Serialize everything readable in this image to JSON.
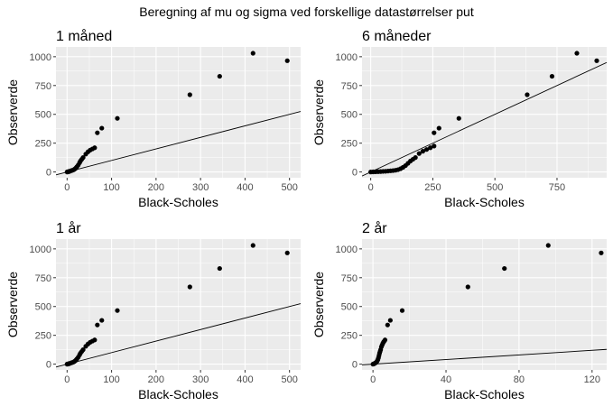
{
  "figure": {
    "title": "Beregning af mu og sigma ved forskellige datastørrelser put"
  },
  "colors": {
    "panel_bg": "#ebebeb",
    "grid_major": "#ffffff",
    "points": "#000000",
    "line": "#000000"
  },
  "chart_data": [
    {
      "type": "scatter",
      "title": "1 måned",
      "xlabel": "Black-Scholes",
      "ylabel": "Observerde",
      "xlim": [
        -25,
        525
      ],
      "ylim": [
        -50,
        1085
      ],
      "xticks": [
        0,
        100,
        200,
        300,
        400,
        500
      ],
      "yticks": [
        0,
        250,
        500,
        750,
        1000
      ],
      "grid": true,
      "reference_line": {
        "slope": 1,
        "intercept": 0
      },
      "points": [
        [
          0,
          0
        ],
        [
          1,
          1
        ],
        [
          2,
          2
        ],
        [
          3,
          3
        ],
        [
          4,
          4
        ],
        [
          6,
          6
        ],
        [
          7,
          8
        ],
        [
          8,
          10
        ],
        [
          10,
          12
        ],
        [
          12,
          15
        ],
        [
          14,
          18
        ],
        [
          16,
          22
        ],
        [
          18,
          28
        ],
        [
          20,
          35
        ],
        [
          22,
          45
        ],
        [
          25,
          60
        ],
        [
          28,
          80
        ],
        [
          30,
          95
        ],
        [
          33,
          110
        ],
        [
          36,
          125
        ],
        [
          42,
          155
        ],
        [
          47,
          175
        ],
        [
          52,
          190
        ],
        [
          57,
          200
        ],
        [
          62,
          210
        ],
        [
          68,
          340
        ],
        [
          78,
          380
        ],
        [
          113,
          465
        ],
        [
          276,
          670
        ],
        [
          343,
          830
        ],
        [
          418,
          1030
        ],
        [
          495,
          965
        ]
      ]
    },
    {
      "type": "scatter",
      "title": "6 måneder",
      "xlabel": "Black-Scholes",
      "ylabel": "Observerde",
      "xlim": [
        -35,
        950
      ],
      "ylim": [
        -50,
        1085
      ],
      "xticks": [
        0,
        250,
        500,
        750
      ],
      "yticks": [
        0,
        250,
        500,
        750,
        1000
      ],
      "grid": true,
      "reference_line": {
        "slope": 1,
        "intercept": 0
      },
      "points": [
        [
          0,
          0
        ],
        [
          10,
          1
        ],
        [
          20,
          2
        ],
        [
          30,
          3
        ],
        [
          40,
          4
        ],
        [
          50,
          5
        ],
        [
          60,
          6
        ],
        [
          70,
          8
        ],
        [
          80,
          10
        ],
        [
          90,
          12
        ],
        [
          100,
          15
        ],
        [
          110,
          20
        ],
        [
          120,
          28
        ],
        [
          130,
          40
        ],
        [
          140,
          55
        ],
        [
          150,
          75
        ],
        [
          160,
          95
        ],
        [
          170,
          110
        ],
        [
          180,
          125
        ],
        [
          195,
          160
        ],
        [
          210,
          180
        ],
        [
          225,
          195
        ],
        [
          240,
          210
        ],
        [
          255,
          225
        ],
        [
          255,
          340
        ],
        [
          275,
          380
        ],
        [
          355,
          465
        ],
        [
          630,
          670
        ],
        [
          730,
          830
        ],
        [
          830,
          1030
        ],
        [
          910,
          965
        ]
      ]
    },
    {
      "type": "scatter",
      "title": "1 år",
      "xlabel": "Black-Scholes",
      "ylabel": "Observerde",
      "xlim": [
        -25,
        525
      ],
      "ylim": [
        -50,
        1085
      ],
      "xticks": [
        0,
        100,
        200,
        300,
        400,
        500
      ],
      "yticks": [
        0,
        250,
        500,
        750,
        1000
      ],
      "grid": true,
      "reference_line": {
        "slope": 1,
        "intercept": 0
      },
      "points": [
        [
          0,
          0
        ],
        [
          1,
          1
        ],
        [
          2,
          2
        ],
        [
          3,
          3
        ],
        [
          4,
          4
        ],
        [
          6,
          6
        ],
        [
          7,
          8
        ],
        [
          8,
          10
        ],
        [
          10,
          12
        ],
        [
          12,
          15
        ],
        [
          14,
          18
        ],
        [
          16,
          22
        ],
        [
          18,
          28
        ],
        [
          20,
          35
        ],
        [
          22,
          45
        ],
        [
          25,
          60
        ],
        [
          28,
          80
        ],
        [
          30,
          95
        ],
        [
          33,
          110
        ],
        [
          36,
          125
        ],
        [
          42,
          155
        ],
        [
          47,
          175
        ],
        [
          52,
          190
        ],
        [
          57,
          200
        ],
        [
          62,
          210
        ],
        [
          68,
          340
        ],
        [
          78,
          380
        ],
        [
          113,
          465
        ],
        [
          276,
          670
        ],
        [
          343,
          830
        ],
        [
          418,
          1030
        ],
        [
          495,
          965
        ]
      ]
    },
    {
      "type": "scatter",
      "title": "2 år",
      "xlabel": "Black-Scholes",
      "ylabel": "Observerde",
      "xlim": [
        -6,
        128
      ],
      "ylim": [
        -50,
        1085
      ],
      "xticks": [
        0,
        40,
        80,
        120
      ],
      "yticks": [
        0,
        250,
        500,
        750,
        1000
      ],
      "grid": true,
      "reference_line": {
        "slope": 1,
        "intercept": 0
      },
      "points": [
        [
          0,
          0
        ],
        [
          0.3,
          2
        ],
        [
          0.6,
          4
        ],
        [
          0.9,
          6
        ],
        [
          1.2,
          9
        ],
        [
          1.5,
          12
        ],
        [
          1.8,
          16
        ],
        [
          2.1,
          22
        ],
        [
          2.4,
          30
        ],
        [
          2.7,
          40
        ],
        [
          3.0,
          55
        ],
        [
          3.3,
          75
        ],
        [
          3.6,
          95
        ],
        [
          3.9,
          110
        ],
        [
          4.2,
          125
        ],
        [
          4.6,
          150
        ],
        [
          5.0,
          165
        ],
        [
          5.4,
          180
        ],
        [
          5.8,
          192
        ],
        [
          6.2,
          200
        ],
        [
          6.6,
          210
        ],
        [
          8.0,
          340
        ],
        [
          9.5,
          380
        ],
        [
          16,
          465
        ],
        [
          52,
          670
        ],
        [
          72,
          830
        ],
        [
          96,
          1030
        ],
        [
          125,
          965
        ]
      ]
    }
  ]
}
